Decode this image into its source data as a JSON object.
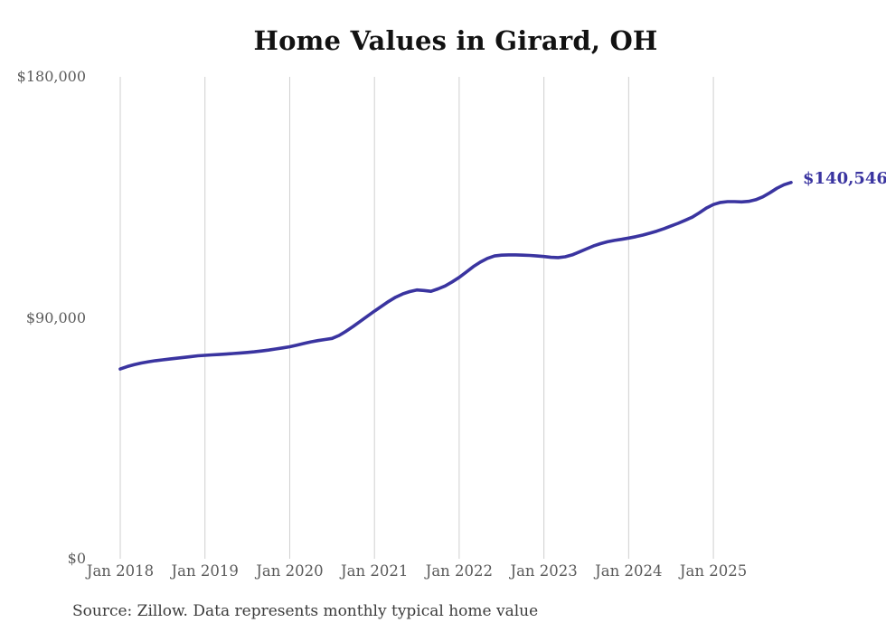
{
  "chart_data": {
    "type": "line",
    "title": "Home Values in Girard, OH",
    "ylabel": "",
    "xlabel": "",
    "ylim": [
      0,
      180000
    ],
    "grid": "vertical-only",
    "legend": "none",
    "line_color": "#3a34a0",
    "gridline_color": "#cfcfcf",
    "end_label": "$140,546",
    "end_value": 140546,
    "y_tick_labels": [
      "$0",
      "$90,000",
      "$180,000"
    ],
    "y_tick_values": [
      0,
      90000,
      180000
    ],
    "x_ticks": [
      "Jan 2018",
      "Jan 2019",
      "Jan 2020",
      "Jan 2021",
      "Jan 2022",
      "Jan 2023",
      "Jan 2024",
      "Jan 2025"
    ],
    "series_name": "Monthly typical home value",
    "months": [
      "2018-01",
      "2018-02",
      "2018-03",
      "2018-04",
      "2018-05",
      "2018-06",
      "2018-07",
      "2018-08",
      "2018-09",
      "2018-10",
      "2018-11",
      "2018-12",
      "2019-01",
      "2019-02",
      "2019-03",
      "2019-04",
      "2019-05",
      "2019-06",
      "2019-07",
      "2019-08",
      "2019-09",
      "2019-10",
      "2019-11",
      "2019-12",
      "2020-01",
      "2020-02",
      "2020-03",
      "2020-04",
      "2020-05",
      "2020-06",
      "2020-07",
      "2020-08",
      "2020-09",
      "2020-10",
      "2020-11",
      "2020-12",
      "2021-01",
      "2021-02",
      "2021-03",
      "2021-04",
      "2021-05",
      "2021-06",
      "2021-07",
      "2021-08",
      "2021-09",
      "2021-10",
      "2021-11",
      "2021-12",
      "2022-01",
      "2022-02",
      "2022-03",
      "2022-04",
      "2022-05",
      "2022-06",
      "2022-07",
      "2022-08",
      "2022-09",
      "2022-10",
      "2022-11",
      "2022-12",
      "2023-01",
      "2023-02",
      "2023-03",
      "2023-04",
      "2023-05",
      "2023-06",
      "2023-07",
      "2023-08",
      "2023-09",
      "2023-10",
      "2023-11",
      "2023-12",
      "2024-01",
      "2024-02",
      "2024-03",
      "2024-04",
      "2024-05",
      "2024-06",
      "2024-07",
      "2024-08",
      "2024-09",
      "2024-10",
      "2024-11",
      "2024-12",
      "2025-01",
      "2025-02",
      "2025-03",
      "2025-04",
      "2025-05",
      "2025-06",
      "2025-07",
      "2025-08",
      "2025-09",
      "2025-10",
      "2025-11",
      "2025-12"
    ],
    "values": [
      70900,
      71800,
      72500,
      73100,
      73600,
      74000,
      74300,
      74600,
      74900,
      75200,
      75500,
      75800,
      76000,
      76150,
      76300,
      76450,
      76650,
      76850,
      77050,
      77300,
      77600,
      77950,
      78350,
      78750,
      79200,
      79800,
      80400,
      81000,
      81500,
      81900,
      82300,
      83400,
      85000,
      86800,
      88700,
      90600,
      92500,
      94300,
      96100,
      97700,
      98900,
      99800,
      100400,
      100200,
      99900,
      100800,
      101900,
      103400,
      105100,
      107100,
      109100,
      110800,
      112200,
      113100,
      113400,
      113500,
      113500,
      113400,
      113300,
      113100,
      112900,
      112600,
      112500,
      112800,
      113500,
      114600,
      115700,
      116800,
      117700,
      118400,
      118900,
      119300,
      119800,
      120300,
      120900,
      121600,
      122400,
      123300,
      124300,
      125300,
      126400,
      127600,
      129200,
      131000,
      132300,
      133100,
      133400,
      133400,
      133300,
      133500,
      134100,
      135200,
      136700,
      138400,
      139700,
      140546
    ],
    "source": "Source: Zillow. Data represents monthly typical home value"
  }
}
